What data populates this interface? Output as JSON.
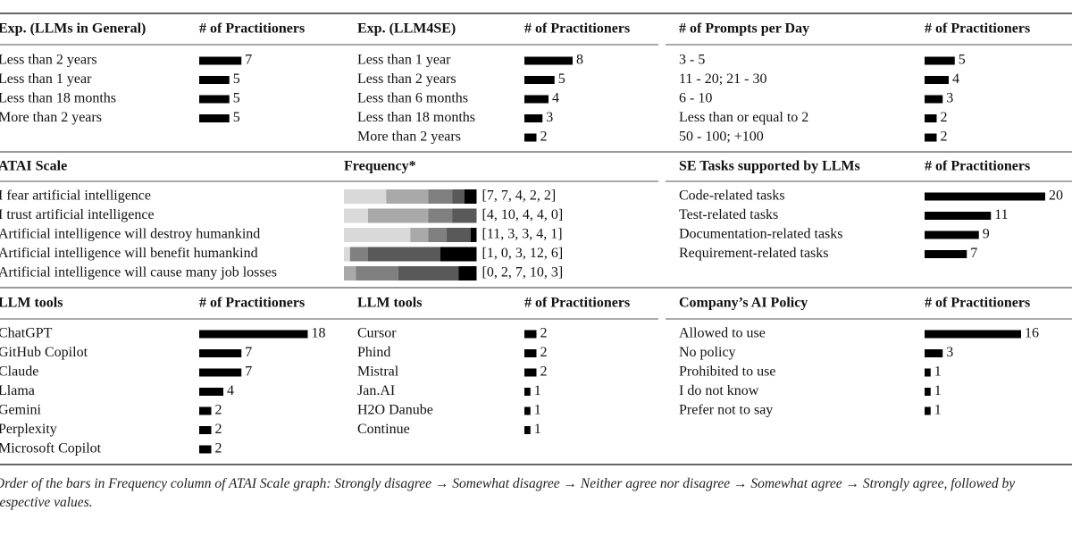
{
  "panels": [
    {
      "type": "bars",
      "header": [
        "Exp. (LLMs in General)",
        "# of Practitioners"
      ],
      "rows": [
        [
          "Less than 2 years",
          7
        ],
        [
          "Less than 1 year",
          5
        ],
        [
          "Less than 18 months",
          5
        ],
        [
          "More than 2 years",
          5
        ]
      ]
    },
    {
      "type": "bars",
      "header": [
        "Exp. (LLM4SE)",
        "# of Practitioners"
      ],
      "rows": [
        [
          "Less than 1 year",
          8
        ],
        [
          "Less than 2 years",
          5
        ],
        [
          "Less than 6 months",
          4
        ],
        [
          "Less than 18 months",
          3
        ],
        [
          "More than 2 years",
          2
        ]
      ]
    },
    {
      "type": "bars",
      "header": [
        "# of Prompts per Day",
        "# of Practitioners"
      ],
      "rows": [
        [
          "3 - 5",
          5
        ],
        [
          "11 - 20; 21 - 30",
          4
        ],
        [
          "6 - 10",
          3
        ],
        [
          "Less than or equal to 2",
          2
        ],
        [
          "50 - 100; +100",
          2
        ]
      ]
    },
    {
      "type": "stacked",
      "header": [
        "ATAI Scale",
        "Frequency*"
      ],
      "colors": [
        "#d9d9d9",
        "#a9a9a9",
        "#808080",
        "#595959",
        "#000000"
      ],
      "rows": [
        {
          "label": "I fear artificial intelligence",
          "values": [
            7,
            7,
            4,
            2,
            2
          ],
          "values_label": "[7, 7, 4, 2, 2]"
        },
        {
          "label": "I trust artificial intelligence",
          "values": [
            4,
            10,
            4,
            4,
            0
          ],
          "values_label": "[4, 10, 4, 4, 0]"
        },
        {
          "label": "Artificial intelligence will destroy humankind",
          "values": [
            11,
            3,
            3,
            4,
            1
          ],
          "values_label": "[11, 3, 3, 4, 1]"
        },
        {
          "label": "Artificial intelligence will benefit humankind",
          "values": [
            1,
            0,
            3,
            12,
            6
          ],
          "values_label": "[1, 0, 3, 12, 6]"
        },
        {
          "label": "Artificial intelligence will cause many job losses",
          "values": [
            0,
            2,
            7,
            10,
            3
          ],
          "values_label": "[0, 2, 7, 10, 3]"
        }
      ]
    },
    {
      "type": "bars",
      "header": [
        "SE Tasks supported by LLMs",
        "# of Practitioners"
      ],
      "rows": [
        [
          "Code-related tasks",
          20
        ],
        [
          "Test-related tasks",
          11
        ],
        [
          "Documentation-related tasks",
          9
        ],
        [
          "Requirement-related tasks",
          7
        ]
      ]
    },
    {
      "type": "bars",
      "header": [
        "LLM tools",
        "# of Practitioners"
      ],
      "rows": [
        [
          "ChatGPT",
          18
        ],
        [
          "GitHub Copilot",
          7
        ],
        [
          "Claude",
          7
        ],
        [
          "Llama",
          4
        ],
        [
          "Gemini",
          2
        ],
        [
          "Perplexity",
          2
        ],
        [
          "Microsoft Copilot",
          2
        ]
      ]
    },
    {
      "type": "bars",
      "header": [
        "LLM tools",
        "# of Practitioners"
      ],
      "rows": [
        [
          "Cursor",
          2
        ],
        [
          "Phind",
          2
        ],
        [
          "Mistral",
          2
        ],
        [
          "Jan.AI",
          1
        ],
        [
          "H2O Danube",
          1
        ],
        [
          "Continue",
          1
        ]
      ]
    },
    {
      "type": "bars",
      "header": [
        "Company’s AI Policy",
        "# of Practitioners"
      ],
      "rows": [
        [
          "Allowed to use",
          16
        ],
        [
          "No policy",
          3
        ],
        [
          "Prohibited to use",
          1
        ],
        [
          "I do not know",
          1
        ],
        [
          "Prefer not to say",
          1
        ]
      ]
    }
  ],
  "bar_color": "#000000",
  "footnote": "Order of the bars in Frequency column of ATAI Scale graph: Strongly disagree → Somewhat disagree → Neither agree nor disagree → Somewhat agree → Strongly agree, followed by respective values."
}
